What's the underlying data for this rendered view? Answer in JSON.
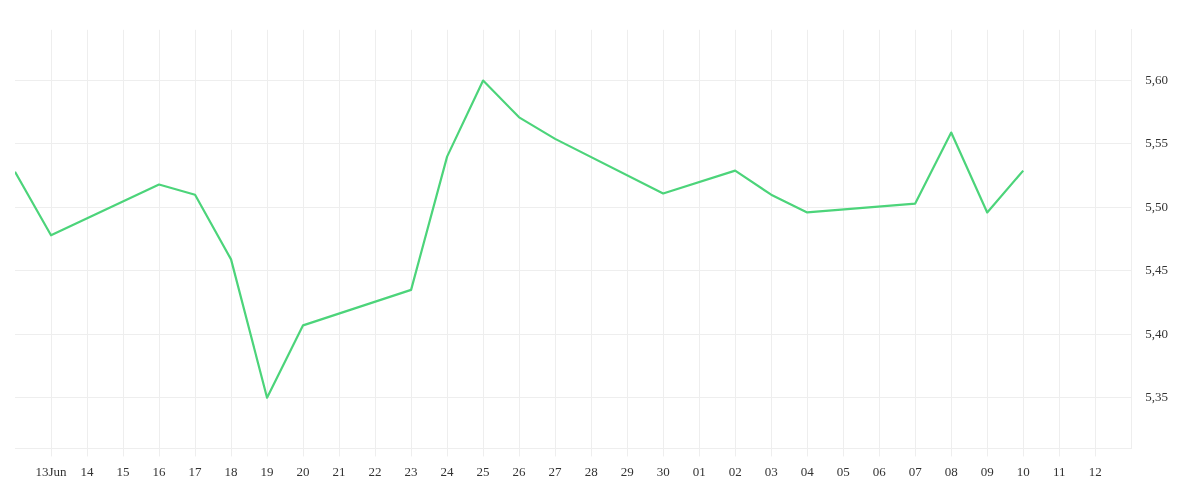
{
  "chart_data": {
    "type": "line",
    "x": [
      "--06-12",
      "--06-13",
      "--06-16",
      "--06-17",
      "--06-18",
      "--06-19",
      "--06-20",
      "--06-23",
      "--06-24",
      "--06-25",
      "--06-26",
      "--06-27",
      "--06-30",
      "--07-02",
      "--07-03",
      "--07-04",
      "--07-07",
      "--07-08",
      "--07-09",
      "--07-10"
    ],
    "series": [
      {
        "color": "#4cd47a",
        "values": [
          5.528,
          5.478,
          5.518,
          5.51,
          5.459,
          5.35,
          5.407,
          5.435,
          5.54,
          5.6,
          5.571,
          5.554,
          5.511,
          5.529,
          5.51,
          5.496,
          5.503,
          5.559,
          5.496,
          5.529
        ]
      }
    ],
    "xlim": [
      "--06-12",
      "--07-13"
    ],
    "xticks": [
      {
        "value": "--06-13",
        "label": "13Jun"
      },
      {
        "value": "--06-14",
        "label": "14"
      },
      {
        "value": "--06-15",
        "label": "15"
      },
      {
        "value": "--06-16",
        "label": "16"
      },
      {
        "value": "--06-17",
        "label": "17"
      },
      {
        "value": "--06-18",
        "label": "18"
      },
      {
        "value": "--06-19",
        "label": "19"
      },
      {
        "value": "--06-20",
        "label": "20"
      },
      {
        "value": "--06-21",
        "label": "21"
      },
      {
        "value": "--06-22",
        "label": "22"
      },
      {
        "value": "--06-23",
        "label": "23"
      },
      {
        "value": "--06-24",
        "label": "24"
      },
      {
        "value": "--06-25",
        "label": "25"
      },
      {
        "value": "--06-26",
        "label": "26"
      },
      {
        "value": "--06-27",
        "label": "27"
      },
      {
        "value": "--06-28",
        "label": "28"
      },
      {
        "value": "--06-29",
        "label": "29"
      },
      {
        "value": "--06-30",
        "label": "30"
      },
      {
        "value": "--07-01",
        "label": "01"
      },
      {
        "value": "--07-02",
        "label": "02"
      },
      {
        "value": "--07-03",
        "label": "03"
      },
      {
        "value": "--07-04",
        "label": "04"
      },
      {
        "value": "--07-05",
        "label": "05"
      },
      {
        "value": "--07-06",
        "label": "06"
      },
      {
        "value": "--07-07",
        "label": "07"
      },
      {
        "value": "--07-08",
        "label": "08"
      },
      {
        "value": "--07-09",
        "label": "09"
      },
      {
        "value": "--07-10",
        "label": "10"
      },
      {
        "value": "--07-11",
        "label": "11"
      },
      {
        "value": "--07-12",
        "label": "12"
      }
    ],
    "ylim": [
      5.31,
      5.64
    ],
    "yticks": [
      {
        "value": 5.35,
        "label": "5,35"
      },
      {
        "value": 5.4,
        "label": "5,40"
      },
      {
        "value": 5.45,
        "label": "5,45"
      },
      {
        "value": 5.5,
        "label": "5,50"
      },
      {
        "value": 5.55,
        "label": "5,55"
      },
      {
        "value": 5.6,
        "label": "5,60"
      }
    ],
    "grid": true,
    "legend": false,
    "marker": "none",
    "line_style": "solid"
  }
}
